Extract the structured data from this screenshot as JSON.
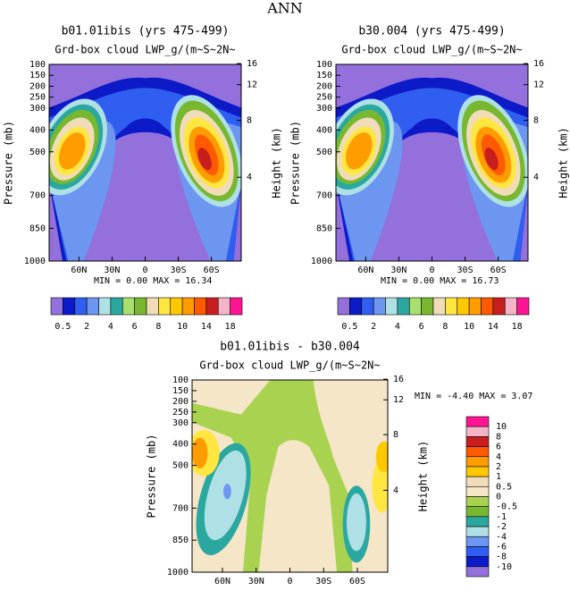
{
  "title": "ANN",
  "chart_data": [
    {
      "type": "contour",
      "title": "b01.01ibis (yrs 475-499)",
      "subtitle": "Grd-box cloud LWP_g/(m~S~2N~",
      "ylabel": "Pressure (mb)",
      "y2label": "Height (km)",
      "ylim": [
        100,
        1000
      ],
      "yticks": [
        100,
        150,
        200,
        250,
        300,
        400,
        500,
        700,
        850,
        1000
      ],
      "y2ticks": [
        16,
        12,
        8,
        4
      ],
      "xlim": [
        87,
        -87
      ],
      "xticks": [
        {
          "value": 60,
          "label": "60N"
        },
        {
          "value": 30,
          "label": "30N"
        },
        0,
        {
          "value": -30,
          "label": "30S"
        },
        {
          "value": -60,
          "label": "60S"
        }
      ],
      "stats": "MIN =   0.00  MAX =  16.34",
      "colorbar": {
        "orientation": "horizontal",
        "colors": [
          "#9370db",
          "#0c1ac8",
          "#2f5ef0",
          "#6d96f0",
          "#aee0e6",
          "#2aa8a0",
          "#a8e070",
          "#78b830",
          "#f0dcb8",
          "#ffe640",
          "#ffc800",
          "#ff9c00",
          "#ff5a00",
          "#c81e1e",
          "#f5b4c8",
          "#ff1493"
        ],
        "labels": [
          0.5,
          2,
          4,
          6,
          8,
          10,
          14,
          18
        ]
      }
    },
    {
      "type": "contour",
      "title": "b30.004 (yrs 475-499)",
      "subtitle": "Grd-box cloud LWP_g/(m~S~2N~",
      "ylabel": "Pressure (mb)",
      "y2label": "Height (km)",
      "ylim": [
        100,
        1000
      ],
      "yticks": [
        100,
        150,
        200,
        250,
        300,
        400,
        500,
        700,
        850,
        1000
      ],
      "y2ticks": [
        16,
        12,
        8,
        4
      ],
      "xlim": [
        87,
        -87
      ],
      "xticks": [
        {
          "value": 60,
          "label": "60N"
        },
        {
          "value": 30,
          "label": "30N"
        },
        0,
        {
          "value": -30,
          "label": "30S"
        },
        {
          "value": -60,
          "label": "60S"
        }
      ],
      "stats": "MIN =   0.00  MAX =  16.73",
      "colorbar": {
        "orientation": "horizontal",
        "colors": [
          "#9370db",
          "#0c1ac8",
          "#2f5ef0",
          "#6d96f0",
          "#aee0e6",
          "#2aa8a0",
          "#a8e070",
          "#78b830",
          "#f0dcb8",
          "#ffe640",
          "#ffc800",
          "#ff9c00",
          "#ff5a00",
          "#c81e1e",
          "#f5b4c8",
          "#ff1493"
        ],
        "labels": [
          0.5,
          2,
          4,
          6,
          8,
          10,
          14,
          18
        ]
      }
    },
    {
      "type": "contour",
      "title": "b01.01ibis - b30.004",
      "subtitle": "Grd-box cloud LWP_g/(m~S~2N~",
      "ylabel": "Pressure (mb)",
      "y2label": "Height (km)",
      "ylim": [
        100,
        1000
      ],
      "yticks": [
        100,
        150,
        200,
        250,
        300,
        400,
        500,
        700,
        850,
        1000
      ],
      "y2ticks": [
        16,
        12,
        8,
        4
      ],
      "xlim": [
        87,
        -87
      ],
      "xticks": [
        {
          "value": 60,
          "label": "60N"
        },
        {
          "value": 30,
          "label": "30N"
        },
        0,
        {
          "value": -30,
          "label": "30S"
        },
        {
          "value": -60,
          "label": "60S"
        }
      ],
      "stats": "MIN =  -4.40  MAX =   3.07",
      "colorbar": {
        "orientation": "vertical",
        "colors": [
          "#ff1493",
          "#f5b4c8",
          "#c81e1e",
          "#ff5a00",
          "#ff9c00",
          "#ffc800",
          "#f0dcb8",
          "#f5e6c8",
          "#a8d250",
          "#78b830",
          "#2aa8a0",
          "#aee0e6",
          "#6d96f0",
          "#2f5ef0",
          "#0c1ac8",
          "#9370db"
        ],
        "labels": [
          10,
          8,
          6,
          4,
          2,
          1,
          0.5,
          0,
          -0.5,
          -1,
          -2,
          -4,
          -6,
          -8,
          -10
        ]
      }
    }
  ]
}
